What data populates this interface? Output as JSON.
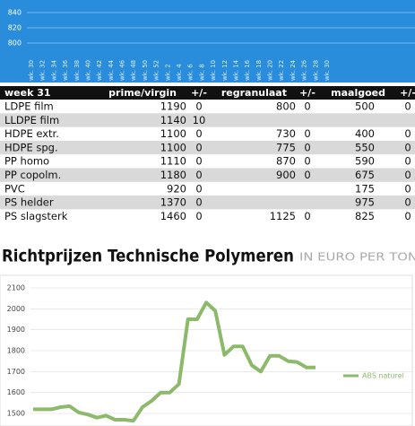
{
  "chart_data": [
    {
      "type": "line",
      "categories": [
        "wk. 30",
        "wk. 32",
        "wk. 34",
        "wk. 36",
        "wk. 38",
        "wk. 40",
        "wk. 42",
        "wk. 44",
        "wk. 46",
        "wk. 48",
        "wk. 50",
        "wk. 52",
        "wk. 2",
        "wk. 4",
        "wk. 6",
        "wk. 8",
        "wk. 10",
        "wk. 12",
        "wk. 14",
        "wk. 16",
        "wk. 18",
        "wk. 20",
        "wk. 22",
        "wk. 24",
        "wk. 26",
        "wk. 28",
        "wk. 30"
      ],
      "ylim": [
        790,
        850
      ],
      "yticks": [
        800,
        820,
        840
      ],
      "grid": true
    },
    {
      "type": "line",
      "title": "Richtprijzen Technische Polymeren",
      "subtitle": "IN EURO PER TON",
      "categories": [
        null,
        null,
        null,
        null,
        null,
        null,
        null,
        null,
        null,
        null,
        null,
        null,
        null,
        null,
        null,
        null,
        null,
        null,
        null,
        null,
        null,
        null,
        null,
        null,
        null,
        null,
        null,
        null,
        null,
        null,
        null,
        null
      ],
      "series": [
        {
          "name": "ABS naturel",
          "color": "#8db96a",
          "values": [
            1520,
            1520,
            1520,
            1530,
            1535,
            1505,
            1495,
            1480,
            1490,
            1470,
            1470,
            1465,
            1530,
            1560,
            1600,
            1600,
            1640,
            1950,
            1950,
            2030,
            1990,
            1780,
            1820,
            1820,
            1730,
            1700,
            1775,
            1775,
            1750,
            1745,
            1720,
            1720
          ]
        }
      ],
      "ylim": [
        1450,
        2150
      ],
      "yticks": [
        1500,
        1600,
        1700,
        1800,
        1900,
        2000,
        2100
      ],
      "grid": true
    }
  ],
  "table": {
    "header": [
      "week 31",
      "prime/virgin",
      "+/-",
      "regranulaat",
      "+/-",
      "maalgoed",
      "+/-"
    ],
    "rows": [
      [
        "LDPE film",
        1190,
        0,
        800,
        0,
        500,
        0
      ],
      [
        "LLDPE film",
        1140,
        10,
        null,
        null,
        null,
        null
      ],
      [
        "HDPE extr.",
        1100,
        0,
        730,
        0,
        400,
        0
      ],
      [
        "HDPE spg.",
        1100,
        0,
        775,
        0,
        550,
        0
      ],
      [
        "PP homo",
        1110,
        0,
        870,
        0,
        590,
        0
      ],
      [
        "PP copolm.",
        1180,
        0,
        900,
        0,
        675,
        0
      ],
      [
        "PVC",
        920,
        0,
        null,
        null,
        175,
        0
      ],
      [
        "PS helder",
        1370,
        0,
        null,
        null,
        975,
        0
      ],
      [
        "PS slagsterk",
        1460,
        0,
        1125,
        0,
        825,
        0
      ]
    ]
  }
}
